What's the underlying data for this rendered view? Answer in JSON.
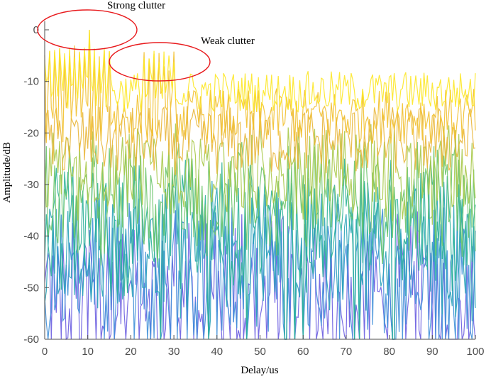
{
  "chart_data": {
    "type": "line",
    "title": "",
    "xlabel": "Delay/us",
    "ylabel": "Amplitude/dB",
    "xlim": [
      0,
      100
    ],
    "ylim": [
      -60,
      3
    ],
    "xticks": [
      0,
      10,
      20,
      30,
      40,
      50,
      60,
      70,
      80,
      90,
      100
    ],
    "yticks": [
      0,
      -10,
      -20,
      -30,
      -40,
      -50,
      -60
    ],
    "grid": false,
    "legend": "none",
    "colormap": [
      "#fde725",
      "#f2c02e",
      "#e9b63a",
      "#a8c94a",
      "#6cc46a",
      "#2fb39a",
      "#2aa3b8",
      "#3f8fd8",
      "#6a5de0"
    ],
    "series_count": 9,
    "series_summary": [
      {
        "band": "strong clutter peaks",
        "x_range": [
          0,
          16
        ],
        "peak_db": 0,
        "typical_db": -3
      },
      {
        "band": "weak clutter peaks",
        "x_range": [
          22,
          31
        ],
        "peak_db": -4,
        "typical_db": -8
      },
      {
        "band": "upper envelope",
        "x_range": [
          0,
          100
        ],
        "typical_db": -12
      },
      {
        "band": "lower envelope",
        "x_range": [
          0,
          100
        ],
        "typical_db": -50
      },
      {
        "band": "deep nulls",
        "x": [
          27,
          38,
          47,
          56,
          58,
          60,
          72,
          73,
          81
        ],
        "value_db": -60
      }
    ],
    "annotations": [
      {
        "text": "Strong clutter",
        "x": 10,
        "y": 0
      },
      {
        "text": "Weak clutter",
        "x": 26,
        "y": -6
      }
    ]
  }
}
